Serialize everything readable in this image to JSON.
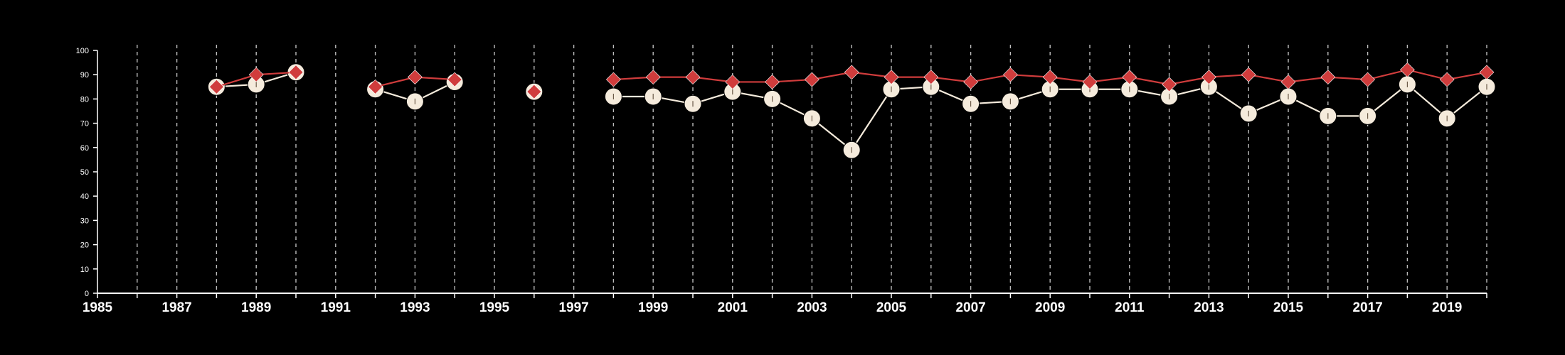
{
  "chart_data": {
    "type": "line",
    "x_ticks": [
      "1985",
      "1987",
      "1989",
      "1991",
      "1993",
      "1995",
      "1997",
      "1999",
      "2001",
      "2003",
      "2005",
      "2007",
      "2009",
      "2011",
      "2013",
      "2015",
      "2017",
      "2019"
    ],
    "y_ticks": [
      "0",
      "10",
      "20",
      "30",
      "40",
      "50",
      "60",
      "70",
      "80",
      "90",
      "100"
    ],
    "xlim": [
      1985,
      2020
    ],
    "ylim": [
      0,
      100
    ],
    "grid": "vertical dashed lines at each year",
    "colors": {
      "background": "#000000",
      "axis": "#ffffff",
      "grid": "#bbbbbb",
      "series_red": "#d03c3c",
      "series_cream": "#f5ebdc"
    },
    "series": [
      {
        "marker": "circle",
        "color": "#f5ebdc",
        "segments": [
          [
            [
              1988,
              85
            ],
            [
              1989,
              86
            ],
            [
              1990,
              91
            ]
          ],
          [
            [
              1992,
              84
            ],
            [
              1993,
              79
            ],
            [
              1994,
              87
            ]
          ],
          [
            [
              1996,
              83
            ]
          ],
          [
            [
              1998,
              81
            ],
            [
              1999,
              81
            ],
            [
              2000,
              78
            ],
            [
              2001,
              83
            ],
            [
              2002,
              80
            ],
            [
              2003,
              72
            ],
            [
              2004,
              59
            ],
            [
              2005,
              84
            ],
            [
              2006,
              85
            ],
            [
              2007,
              78
            ],
            [
              2008,
              79
            ],
            [
              2009,
              84
            ],
            [
              2010,
              84
            ],
            [
              2011,
              84
            ],
            [
              2012,
              81
            ],
            [
              2013,
              85
            ],
            [
              2014,
              74
            ],
            [
              2015,
              81
            ],
            [
              2016,
              73
            ],
            [
              2017,
              73
            ],
            [
              2018,
              86
            ],
            [
              2019,
              72
            ],
            [
              2020,
              85
            ]
          ]
        ]
      },
      {
        "marker": "diamond",
        "color": "#d03c3c",
        "segments": [
          [
            [
              1988,
              85
            ],
            [
              1989,
              90
            ],
            [
              1990,
              91
            ]
          ],
          [
            [
              1992,
              85
            ],
            [
              1993,
              89
            ],
            [
              1994,
              88
            ]
          ],
          [
            [
              1996,
              83
            ]
          ],
          [
            [
              1998,
              88
            ],
            [
              1999,
              89
            ],
            [
              2000,
              89
            ],
            [
              2001,
              87
            ],
            [
              2002,
              87
            ],
            [
              2003,
              88
            ],
            [
              2004,
              91
            ],
            [
              2005,
              89
            ],
            [
              2006,
              89
            ],
            [
              2007,
              87
            ],
            [
              2008,
              90
            ],
            [
              2009,
              89
            ],
            [
              2010,
              87
            ],
            [
              2011,
              89
            ],
            [
              2012,
              86
            ],
            [
              2013,
              89
            ],
            [
              2014,
              90
            ],
            [
              2015,
              87
            ],
            [
              2016,
              89
            ],
            [
              2017,
              88
            ],
            [
              2018,
              92
            ],
            [
              2019,
              88
            ],
            [
              2020,
              91
            ]
          ]
        ]
      }
    ]
  }
}
